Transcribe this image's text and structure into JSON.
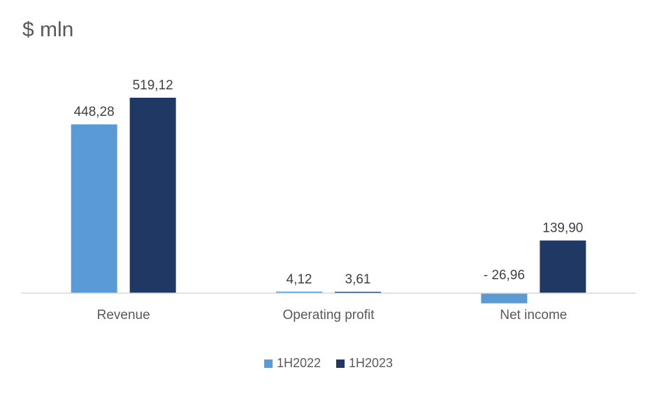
{
  "chart_data": {
    "type": "bar",
    "title": "$ mln",
    "categories": [
      "Revenue",
      "Operating profit",
      "Net income"
    ],
    "series": [
      {
        "name": "1H2022",
        "color": "#5B9BD5",
        "values": [
          448.28,
          4.12,
          -26.96
        ],
        "labels": [
          "448,28",
          "4,12",
          "- 26,96"
        ]
      },
      {
        "name": "1H2023",
        "color": "#1F3864",
        "values": [
          519.12,
          3.61,
          139.9
        ],
        "labels": [
          "519,12",
          "3,61",
          "139,90"
        ]
      }
    ],
    "ylim": [
      -30,
      540
    ],
    "grid": false,
    "legend_position": "bottom"
  }
}
